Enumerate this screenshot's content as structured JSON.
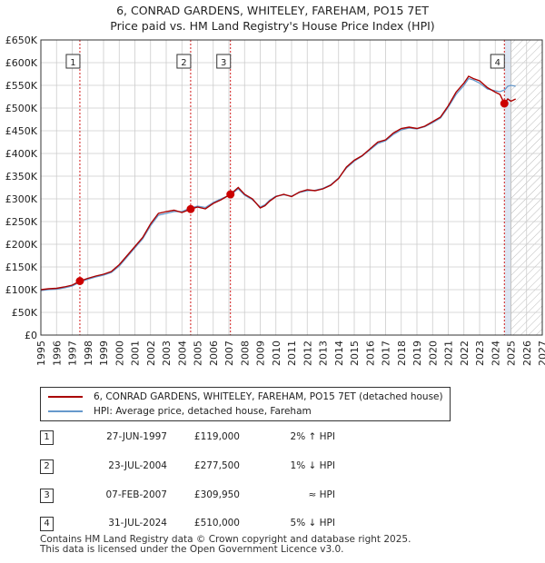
{
  "title_line1": "6, CONRAD GARDENS, WHITELEY, FAREHAM, PO15 7ET",
  "title_line2": "Price paid vs. HM Land Registry's House Price Index (HPI)",
  "colors": {
    "property": "#aa0000",
    "hpi": "#6699cc",
    "marker": "#cc0000",
    "grid": "#cccccc",
    "shade": "#dde6f3"
  },
  "legend": {
    "property": "6, CONRAD GARDENS, WHITELEY, FAREHAM, PO15 7ET (detached house)",
    "hpi": "HPI: Average price, detached house, Fareham"
  },
  "sales": [
    {
      "num": "1",
      "date": "27-JUN-1997",
      "price": "£119,000",
      "hpi": "2% ↑ HPI"
    },
    {
      "num": "2",
      "date": "23-JUL-2004",
      "price": "£277,500",
      "hpi": "1% ↓ HPI"
    },
    {
      "num": "3",
      "date": "07-FEB-2007",
      "price": "£309,950",
      "hpi": "≈ HPI"
    },
    {
      "num": "4",
      "date": "31-JUL-2024",
      "price": "£510,000",
      "hpi": "5% ↓ HPI"
    }
  ],
  "footer_line1": "Contains HM Land Registry data © Crown copyright and database right 2025.",
  "footer_line2": "This data is licensed under the Open Government Licence v3.0.",
  "chart_data": {
    "type": "line",
    "title": "6, CONRAD GARDENS, WHITELEY, FAREHAM, PO15 7ET — Price paid vs. HM Land Registry's House Price Index (HPI)",
    "xlabel": "",
    "ylabel": "",
    "xlim": [
      1995,
      2027
    ],
    "ylim": [
      0,
      650000
    ],
    "x_ticks": [
      1995,
      1996,
      1997,
      1998,
      1999,
      2000,
      2001,
      2002,
      2003,
      2004,
      2005,
      2006,
      2007,
      2008,
      2009,
      2010,
      2011,
      2012,
      2013,
      2014,
      2015,
      2016,
      2017,
      2018,
      2019,
      2020,
      2021,
      2022,
      2023,
      2024,
      2025,
      2026,
      2027
    ],
    "y_ticks": [
      0,
      50000,
      100000,
      150000,
      200000,
      250000,
      300000,
      350000,
      400000,
      450000,
      500000,
      550000,
      600000,
      650000
    ],
    "y_tick_labels": [
      "£0",
      "£50K",
      "£100K",
      "£150K",
      "£200K",
      "£250K",
      "£300K",
      "£350K",
      "£400K",
      "£450K",
      "£500K",
      "£550K",
      "£600K",
      "£650K"
    ],
    "forecast_start": 2025.0,
    "hpi_start": 2024.6,
    "sale_markers": [
      {
        "label": "1",
        "x": 1997.49,
        "y": 119000
      },
      {
        "label": "2",
        "x": 2004.56,
        "y": 277500
      },
      {
        "label": "3",
        "x": 2007.1,
        "y": 309950
      },
      {
        "label": "4",
        "x": 2024.58,
        "y": 510000
      }
    ],
    "series": [
      {
        "name": "6, CONRAD GARDENS, WHITELEY, FAREHAM, PO15 7ET (detached house)",
        "x": [
          1995.0,
          1995.5,
          1996.0,
          1996.5,
          1997.0,
          1997.49,
          1998.0,
          1998.5,
          1999.0,
          1999.5,
          2000.0,
          2000.5,
          2001.0,
          2001.5,
          2002.0,
          2002.5,
          2003.0,
          2003.5,
          2004.0,
          2004.56,
          2005.0,
          2005.5,
          2006.0,
          2006.5,
          2007.1,
          2007.6,
          2008.0,
          2008.5,
          2009.0,
          2009.3,
          2009.6,
          2010.0,
          2010.5,
          2011.0,
          2011.5,
          2012.0,
          2012.5,
          2013.0,
          2013.5,
          2014.0,
          2014.5,
          2015.0,
          2015.5,
          2016.0,
          2016.5,
          2017.0,
          2017.5,
          2018.0,
          2018.5,
          2019.0,
          2019.5,
          2020.0,
          2020.5,
          2021.0,
          2021.5,
          2022.0,
          2022.3,
          2022.6,
          2023.0,
          2023.5,
          2024.0,
          2024.3,
          2024.58,
          2024.8,
          2025.0,
          2025.3
        ],
        "y": [
          100000,
          102000,
          103000,
          106000,
          110000,
          119000,
          125000,
          130000,
          134000,
          140000,
          155000,
          175000,
          195000,
          215000,
          245000,
          268000,
          272000,
          275000,
          270000,
          277500,
          282000,
          278000,
          290000,
          298000,
          309950,
          325000,
          310000,
          300000,
          280000,
          285000,
          295000,
          305000,
          310000,
          305000,
          315000,
          320000,
          318000,
          322000,
          330000,
          345000,
          370000,
          385000,
          395000,
          410000,
          425000,
          430000,
          445000,
          455000,
          458000,
          455000,
          460000,
          470000,
          480000,
          505000,
          535000,
          555000,
          570000,
          565000,
          560000,
          545000,
          535000,
          530000,
          510000,
          520000,
          515000,
          520000
        ]
      },
      {
        "name": "HPI: Average price, detached house, Fareham",
        "x": [
          1995.0,
          1995.5,
          1996.0,
          1996.5,
          1997.0,
          1997.49,
          1998.0,
          1998.5,
          1999.0,
          1999.5,
          2000.0,
          2000.5,
          2001.0,
          2001.5,
          2002.0,
          2002.5,
          2003.0,
          2003.5,
          2004.0,
          2004.56,
          2005.0,
          2005.5,
          2006.0,
          2006.5,
          2007.1,
          2007.6,
          2008.0,
          2008.5,
          2009.0,
          2009.3,
          2009.6,
          2010.0,
          2010.5,
          2011.0,
          2011.5,
          2012.0,
          2012.5,
          2013.0,
          2013.5,
          2014.0,
          2014.5,
          2015.0,
          2015.5,
          2016.0,
          2016.5,
          2017.0,
          2017.5,
          2018.0,
          2018.5,
          2019.0,
          2019.5,
          2020.0,
          2020.5,
          2021.0,
          2021.5,
          2022.0,
          2022.3,
          2022.6,
          2023.0,
          2023.5,
          2024.0,
          2024.3,
          2024.6,
          2024.8,
          2025.0,
          2025.3
        ],
        "y": [
          98000,
          100000,
          101000,
          104000,
          108000,
          117000,
          123000,
          128000,
          132000,
          138000,
          152000,
          172000,
          192000,
          212000,
          241000,
          264000,
          268000,
          272000,
          272000,
          280000,
          284000,
          281000,
          292000,
          300000,
          309000,
          322000,
          308000,
          298000,
          282000,
          287000,
          297000,
          306000,
          309000,
          306000,
          314000,
          318000,
          319000,
          323000,
          331000,
          346000,
          368000,
          383000,
          394000,
          408000,
          422000,
          428000,
          442000,
          452000,
          456000,
          454000,
          459000,
          468000,
          478000,
          502000,
          530000,
          550000,
          565000,
          562000,
          555000,
          542000,
          538000,
          536000,
          540000,
          548000,
          550000,
          548000
        ]
      }
    ]
  }
}
